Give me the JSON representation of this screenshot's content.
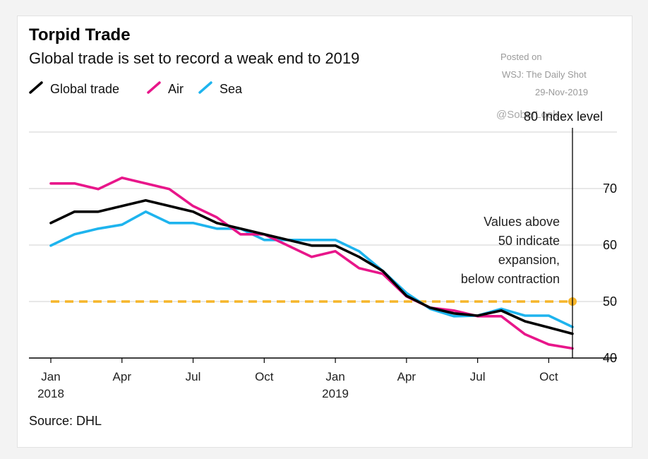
{
  "chart_data": {
    "type": "line",
    "title": "Torpid Trade",
    "subtitle": "Global trade is set to record a weak end to 2019",
    "ylabel": "Index level",
    "ylim": [
      40,
      80
    ],
    "yticks": [
      40,
      50,
      60,
      70,
      80
    ],
    "xlabels": [
      {
        "label": "Jan",
        "sub": "2018",
        "index": 0
      },
      {
        "label": "Apr",
        "sub": "",
        "index": 3
      },
      {
        "label": "Jul",
        "sub": "",
        "index": 6
      },
      {
        "label": "Oct",
        "sub": "",
        "index": 9
      },
      {
        "label": "Jan",
        "sub": "2019",
        "index": 12
      },
      {
        "label": "Apr",
        "sub": "",
        "index": 15
      },
      {
        "label": "Jul",
        "sub": "",
        "index": 18
      },
      {
        "label": "Oct",
        "sub": "",
        "index": 21
      }
    ],
    "x": [
      "2018-01",
      "2018-02",
      "2018-03",
      "2018-04",
      "2018-05",
      "2018-06",
      "2018-07",
      "2018-08",
      "2018-09",
      "2018-10",
      "2018-11",
      "2018-12",
      "2019-01",
      "2019-02",
      "2019-03",
      "2019-04",
      "2019-05",
      "2019-06",
      "2019-07",
      "2019-08",
      "2019-09",
      "2019-10",
      "2019-11"
    ],
    "series": [
      {
        "name": "Global trade",
        "color": "#000000",
        "values": [
          63.9,
          65.9,
          65.9,
          66.9,
          67.9,
          66.9,
          65.9,
          63.9,
          62.9,
          61.9,
          60.9,
          59.9,
          59.9,
          57.9,
          55.4,
          51.0,
          48.9,
          47.9,
          47.5,
          48.4,
          46.5,
          45.4,
          44.3
        ]
      },
      {
        "name": "Air",
        "color": "#e8168a",
        "values": [
          70.9,
          70.9,
          69.9,
          71.9,
          70.9,
          69.9,
          66.9,
          64.9,
          61.9,
          61.9,
          59.9,
          57.9,
          58.9,
          55.9,
          54.9,
          50.9,
          48.9,
          48.4,
          47.4,
          47.4,
          44.2,
          42.4,
          41.7
        ]
      },
      {
        "name": "Sea",
        "color": "#1eb4ee",
        "values": [
          59.9,
          61.9,
          62.9,
          63.6,
          65.9,
          63.9,
          63.9,
          62.9,
          62.9,
          60.9,
          60.9,
          60.9,
          60.9,
          58.9,
          55.4,
          51.5,
          48.7,
          47.4,
          47.5,
          48.7,
          47.5,
          47.5,
          45.5
        ]
      }
    ],
    "reference_line": {
      "value": 50,
      "color": "#f6b52a"
    },
    "annotation": [
      "Values above",
      "50 indicate",
      "expansion,",
      "below contraction"
    ],
    "legend_placement": "top-left",
    "grid": true,
    "source": "Source: DHL",
    "watermark": [
      "Posted on",
      "WSJ: The Daily Shot",
      "29-Nov-2019",
      "@SoberLook"
    ]
  }
}
